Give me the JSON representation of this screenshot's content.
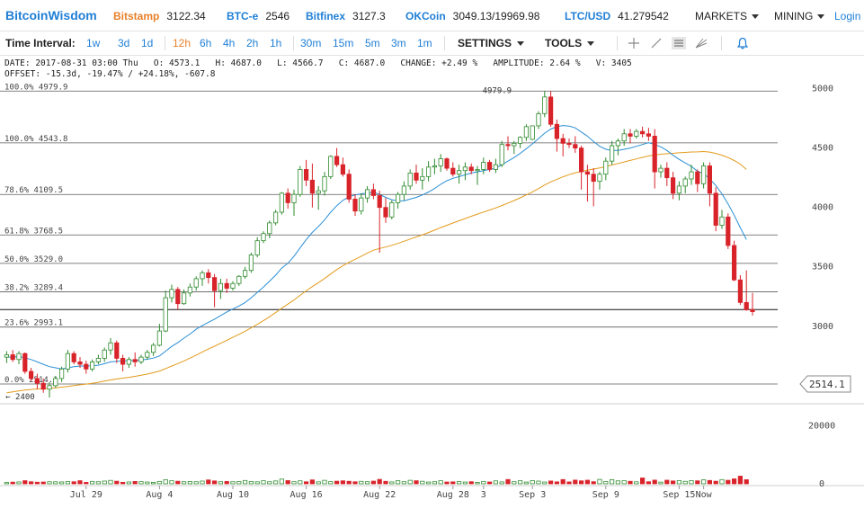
{
  "header": {
    "logo": "BitcoinWisdom",
    "exchanges": [
      {
        "name": "Bitstamp",
        "price": "3122.34",
        "selected": true
      },
      {
        "name": "BTC-e",
        "price": "2546",
        "selected": false
      },
      {
        "name": "Bitfinex",
        "price": "3127.3",
        "selected": false
      },
      {
        "name": "OKCoin",
        "price": "3049.13/19969.98",
        "selected": false
      },
      {
        "name": "LTC/USD",
        "price": "41.279542",
        "selected": false
      }
    ],
    "markets_label": "MARKETS",
    "mining_label": "MINING",
    "login_label": "Login"
  },
  "toolbar": {
    "time_interval_label": "Time Interval:",
    "intervals": [
      "1w",
      "3d",
      "1d",
      "12h",
      "6h",
      "4h",
      "2h",
      "1h",
      "30m",
      "15m",
      "5m",
      "3m",
      "1m"
    ],
    "selected_interval": "12h",
    "settings_label": "SETTINGS",
    "tools_label": "TOOLS"
  },
  "info": {
    "line1": "DATE: 2017-08-31 03:00 Thu   O: 4573.1   H: 4687.0   L: 4566.7   C: 4687.0   CHANGE: +2.49 %   AMPLITUDE: 2.64 %   V: 3405",
    "line2": "OFFSET: -15.3d, -19.47% / +24.18%, -607.8"
  },
  "colors": {
    "up": "#2e8b2e",
    "down": "#d9232a",
    "fast_ma": "#2a8fd6",
    "slow_ma": "#e39b1c",
    "link": "#1f7fd6",
    "selected": "#e8802a"
  },
  "chart_data": {
    "type": "candlestick",
    "title": "",
    "ylim": [
      2370,
      5050
    ],
    "y_ticks": [
      3000,
      3500,
      4000,
      4500,
      5000
    ],
    "x_tick_labels": [
      "Jul 29",
      "Aug 4",
      "Aug 10",
      "Aug 16",
      "Aug 22",
      "Aug 28",
      "3",
      "Sep 3",
      "Sep 9",
      "Sep 15",
      "Now"
    ],
    "x_tick_slots": [
      13,
      25,
      37,
      49,
      61,
      73,
      78,
      86,
      98,
      110,
      114
    ],
    "price_label": "2514.1",
    "fib_levels": [
      {
        "label": "100.0% 4979.9",
        "value": 4979.9
      },
      {
        "label": "100.0% 4543.8",
        "value": 4543.8
      },
      {
        "label": "78.6% 4109.5",
        "value": 4109.5
      },
      {
        "label": "61.8% 3768.5",
        "value": 3768.5
      },
      {
        "label": "50.0% 3529.0",
        "value": 3529.0
      },
      {
        "label": "38.2% 3289.4",
        "value": 3289.4
      },
      {
        "label": "23.6% 2993.1",
        "value": 2993.1
      },
      {
        "label": "0.0% 2514.1",
        "value": 2514.1
      }
    ],
    "annotations": [
      {
        "text": "4979.9",
        "value": 4979.9,
        "slot": 84
      },
      {
        "text": "← 2400",
        "value": 2400,
        "slot": 6
      }
    ],
    "horizontal_line": 3140,
    "candles": [
      [
        2740,
        2790,
        2690,
        2760
      ],
      [
        2760,
        2800,
        2700,
        2720
      ],
      [
        2720,
        2790,
        2680,
        2770
      ],
      [
        2770,
        2780,
        2600,
        2620
      ],
      [
        2620,
        2650,
        2540,
        2560
      ],
      [
        2560,
        2600,
        2470,
        2520
      ],
      [
        2520,
        2560,
        2440,
        2470
      ],
      [
        2470,
        2530,
        2400,
        2500
      ],
      [
        2500,
        2580,
        2480,
        2560
      ],
      [
        2560,
        2660,
        2530,
        2640
      ],
      [
        2640,
        2800,
        2610,
        2770
      ],
      [
        2770,
        2790,
        2680,
        2700
      ],
      [
        2700,
        2740,
        2650,
        2680
      ],
      [
        2680,
        2710,
        2600,
        2640
      ],
      [
        2640,
        2720,
        2620,
        2700
      ],
      [
        2700,
        2760,
        2680,
        2730
      ],
      [
        2730,
        2820,
        2700,
        2800
      ],
      [
        2800,
        2900,
        2760,
        2860
      ],
      [
        2860,
        2880,
        2690,
        2730
      ],
      [
        2730,
        2760,
        2620,
        2680
      ],
      [
        2680,
        2740,
        2650,
        2720
      ],
      [
        2720,
        2780,
        2660,
        2700
      ],
      [
        2700,
        2760,
        2680,
        2740
      ],
      [
        2740,
        2800,
        2720,
        2780
      ],
      [
        2780,
        2860,
        2750,
        2840
      ],
      [
        2840,
        3020,
        2830,
        2960
      ],
      [
        2960,
        3300,
        2950,
        3240
      ],
      [
        3240,
        3350,
        3200,
        3310
      ],
      [
        3310,
        3330,
        3140,
        3190
      ],
      [
        3190,
        3310,
        3180,
        3280
      ],
      [
        3280,
        3360,
        3250,
        3330
      ],
      [
        3330,
        3420,
        3300,
        3400
      ],
      [
        3400,
        3470,
        3340,
        3450
      ],
      [
        3450,
        3480,
        3360,
        3410
      ],
      [
        3410,
        3440,
        3160,
        3300
      ],
      [
        3300,
        3400,
        3230,
        3360
      ],
      [
        3360,
        3400,
        3280,
        3320
      ],
      [
        3320,
        3380,
        3300,
        3360
      ],
      [
        3360,
        3430,
        3340,
        3420
      ],
      [
        3420,
        3500,
        3400,
        3470
      ],
      [
        3470,
        3620,
        3450,
        3600
      ],
      [
        3600,
        3750,
        3580,
        3720
      ],
      [
        3720,
        3800,
        3700,
        3780
      ],
      [
        3780,
        3890,
        3740,
        3870
      ],
      [
        3870,
        3980,
        3850,
        3960
      ],
      [
        3960,
        4130,
        3940,
        4120
      ],
      [
        4120,
        4160,
        3990,
        4040
      ],
      [
        4040,
        4150,
        3930,
        4110
      ],
      [
        4110,
        4350,
        4090,
        4320
      ],
      [
        4320,
        4400,
        4180,
        4230
      ],
      [
        4230,
        4370,
        4000,
        4120
      ],
      [
        4120,
        4180,
        3980,
        4140
      ],
      [
        4140,
        4300,
        4100,
        4260
      ],
      [
        4260,
        4440,
        4240,
        4430
      ],
      [
        4430,
        4500,
        4340,
        4360
      ],
      [
        4360,
        4420,
        4260,
        4280
      ],
      [
        4280,
        4320,
        4040,
        4070
      ],
      [
        4070,
        4110,
        3930,
        3970
      ],
      [
        3970,
        4120,
        3940,
        4080
      ],
      [
        4080,
        4180,
        4040,
        4150
      ],
      [
        4150,
        4200,
        4070,
        4100
      ],
      [
        4100,
        4140,
        3620,
        4000
      ],
      [
        4000,
        4080,
        3870,
        3920
      ],
      [
        3920,
        4060,
        3900,
        4040
      ],
      [
        4040,
        4130,
        3990,
        4110
      ],
      [
        4110,
        4220,
        4060,
        4180
      ],
      [
        4180,
        4320,
        4150,
        4290
      ],
      [
        4290,
        4360,
        4200,
        4230
      ],
      [
        4230,
        4330,
        4150,
        4260
      ],
      [
        4260,
        4390,
        4220,
        4340
      ],
      [
        4340,
        4410,
        4280,
        4350
      ],
      [
        4350,
        4450,
        4300,
        4410
      ],
      [
        4410,
        4420,
        4310,
        4330
      ],
      [
        4330,
        4380,
        4260,
        4280
      ],
      [
        4280,
        4360,
        4200,
        4310
      ],
      [
        4310,
        4380,
        4230,
        4340
      ],
      [
        4340,
        4370,
        4280,
        4310
      ],
      [
        4310,
        4350,
        4190,
        4320
      ],
      [
        4320,
        4420,
        4280,
        4380
      ],
      [
        4380,
        4400,
        4300,
        4320
      ],
      [
        4320,
        4410,
        4290,
        4360
      ],
      [
        4360,
        4560,
        4340,
        4530
      ],
      [
        4530,
        4600,
        4480,
        4520
      ],
      [
        4520,
        4560,
        4450,
        4540
      ],
      [
        4540,
        4600,
        4500,
        4590
      ],
      [
        4590,
        4700,
        4560,
        4680
      ],
      [
        4573.1,
        4687.0,
        4566.7,
        4687.0
      ],
      [
        4687,
        4810,
        4660,
        4790
      ],
      [
        4790,
        4980,
        4760,
        4930
      ],
      [
        4930,
        4980,
        4680,
        4700
      ],
      [
        4700,
        4740,
        4470,
        4580
      ],
      [
        4580,
        4620,
        4430,
        4540
      ],
      [
        4540,
        4580,
        4500,
        4530
      ],
      [
        4530,
        4600,
        4460,
        4500
      ],
      [
        4500,
        4520,
        4150,
        4300
      ],
      [
        4300,
        4360,
        4050,
        4280
      ],
      [
        4280,
        4330,
        4010,
        4220
      ],
      [
        4220,
        4300,
        4150,
        4280
      ],
      [
        4280,
        4420,
        4230,
        4390
      ],
      [
        4390,
        4560,
        4360,
        4520
      ],
      [
        4520,
        4580,
        4440,
        4560
      ],
      [
        4560,
        4660,
        4520,
        4620
      ],
      [
        4620,
        4660,
        4540,
        4600
      ],
      [
        4600,
        4660,
        4580,
        4640
      ],
      [
        4640,
        4680,
        4590,
        4620
      ],
      [
        4620,
        4670,
        4560,
        4600
      ],
      [
        4600,
        4660,
        4160,
        4300
      ],
      [
        4300,
        4360,
        4250,
        4330
      ],
      [
        4330,
        4380,
        4180,
        4250
      ],
      [
        4250,
        4300,
        4070,
        4120
      ],
      [
        4120,
        4220,
        4060,
        4180
      ],
      [
        4180,
        4260,
        4120,
        4240
      ],
      [
        4240,
        4360,
        4190,
        4300
      ],
      [
        4300,
        4320,
        4130,
        4200
      ],
      [
        4200,
        4380,
        4160,
        4350
      ],
      [
        4350,
        4380,
        4010,
        4120
      ],
      [
        4120,
        4170,
        3800,
        3850
      ],
      [
        3850,
        3980,
        3820,
        3920
      ],
      [
        3920,
        3950,
        3650,
        3680
      ],
      [
        3680,
        3720,
        3380,
        3390
      ],
      [
        3390,
        3430,
        3180,
        3200
      ],
      [
        3200,
        3470,
        3130,
        3140
      ],
      [
        3140,
        3280,
        3090,
        3123
      ]
    ],
    "fast_ma": [
      2740,
      2740,
      2745,
      2735,
      2720,
      2700,
      2680,
      2660,
      2650,
      2640,
      2650,
      2660,
      2665,
      2665,
      2667,
      2672,
      2685,
      2700,
      2705,
      2708,
      2711,
      2714,
      2717,
      2722,
      2732,
      2750,
      2790,
      2830,
      2863,
      2900,
      2935,
      2975,
      3005,
      3033,
      3060,
      3090,
      3120,
      3145,
      3170,
      3200,
      3240,
      3285,
      3330,
      3380,
      3430,
      3490,
      3530,
      3590,
      3660,
      3730,
      3790,
      3840,
      3895,
      3960,
      4015,
      4060,
      4090,
      4105,
      4115,
      4122,
      4128,
      4110,
      4085,
      4065,
      4055,
      4055,
      4070,
      4085,
      4105,
      4130,
      4160,
      4195,
      4225,
      4245,
      4260,
      4275,
      4290,
      4300,
      4310,
      4320,
      4330,
      4360,
      4390,
      4420,
      4455,
      4495,
      4535,
      4580,
      4625,
      4660,
      4680,
      4690,
      4685,
      4670,
      4635,
      4600,
      4555,
      4515,
      4490,
      4480,
      4480,
      4490,
      4500,
      4515,
      4530,
      4545,
      4530,
      4510,
      4480,
      4440,
      4405,
      4375,
      4345,
      4305,
      4285,
      4240,
      4185,
      4115,
      4030,
      3935,
      3830,
      3730
    ],
    "slow_ma": [
      2440,
      2448,
      2456,
      2463,
      2468,
      2472,
      2475,
      2478,
      2482,
      2487,
      2493,
      2500,
      2507,
      2513,
      2520,
      2528,
      2538,
      2548,
      2556,
      2563,
      2570,
      2578,
      2587,
      2597,
      2609,
      2623,
      2643,
      2665,
      2686,
      2708,
      2732,
      2757,
      2783,
      2808,
      2832,
      2857,
      2882,
      2907,
      2932,
      2958,
      2986,
      3016,
      3047,
      3080,
      3115,
      3152,
      3186,
      3221,
      3260,
      3298,
      3334,
      3367,
      3402,
      3440,
      3477,
      3510,
      3538,
      3564,
      3590,
      3616,
      3640,
      3655,
      3667,
      3681,
      3697,
      3715,
      3734,
      3752,
      3770,
      3789,
      3809,
      3830,
      3850,
      3869,
      3888,
      3907,
      3926,
      3944,
      3961,
      3979,
      3996,
      4016,
      4037,
      4058,
      4081,
      4106,
      4131,
      4159,
      4189,
      4215,
      4237,
      4258,
      4276,
      4292,
      4303,
      4314,
      4323,
      4333,
      4344,
      4357,
      4370,
      4383,
      4396,
      4409,
      4422,
      4434,
      4442,
      4448,
      4453,
      4456,
      4460,
      4463,
      4467,
      4468,
      4471,
      4466,
      4455,
      4440,
      4420,
      4395,
      4365,
      4320
    ],
    "volumes": [
      420,
      560,
      640,
      1080,
      700,
      540,
      610,
      700,
      690,
      640,
      770,
      700,
      1070,
      480,
      820,
      710,
      940,
      1170,
      890,
      500,
      630,
      800,
      740,
      610,
      510,
      820,
      1400,
      1050,
      880,
      710,
      810,
      720,
      940,
      1330,
      990,
      720,
      810,
      710,
      770,
      1140,
      810,
      680,
      1060,
      710,
      990,
      1620,
      1110,
      720,
      1030,
      690,
      1340,
      670,
      1190,
      740,
      890,
      1030,
      860,
      690,
      840,
      720,
      920,
      1520,
      850,
      640,
      1090,
      720,
      1200,
      1060,
      870,
      610,
      720,
      1060,
      610,
      670,
      780,
      600,
      720,
      490,
      820,
      620,
      1010,
      650,
      1480,
      730,
      1070,
      590,
      1090,
      930,
      610,
      960,
      660,
      1470,
      640,
      1270,
      1020,
      1240,
      720,
      1510,
      810,
      1430,
      1010,
      1070,
      860,
      680,
      2000,
      710,
      1270,
      570,
      1240,
      980,
      1120,
      850,
      1100,
      1030,
      1360,
      1150,
      890,
      1450,
      1210,
      1700,
      2640,
      1420
    ],
    "volume_ticks": [
      0,
      20000
    ],
    "volume_scale_max": 26000
  }
}
